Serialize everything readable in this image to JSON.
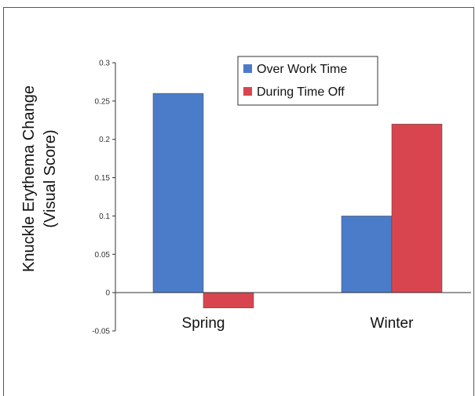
{
  "chart_data": {
    "type": "bar",
    "categories": [
      "Spring",
      "Winter"
    ],
    "series": [
      {
        "name": "Over Work Time",
        "values": [
          0.26,
          0.1
        ],
        "color": "#4a7cc9"
      },
      {
        "name": "During Time Off",
        "values": [
          -0.02,
          0.22
        ],
        "color": "#d9454f"
      }
    ],
    "ylabel_line1": "Knuckle Erythema Change",
    "ylabel_line2": "(Visual Score)",
    "ylim": [
      -0.05,
      0.3
    ],
    "yticks": [
      "-0.05",
      "0",
      "0.05",
      "0.1",
      "0.15",
      "0.2",
      "0.25",
      "0.3"
    ],
    "ytick_values": [
      -0.05,
      0,
      0.05,
      0.1,
      0.15,
      0.2,
      0.25,
      0.3
    ],
    "legend_position": "top-right",
    "grid": false
  }
}
